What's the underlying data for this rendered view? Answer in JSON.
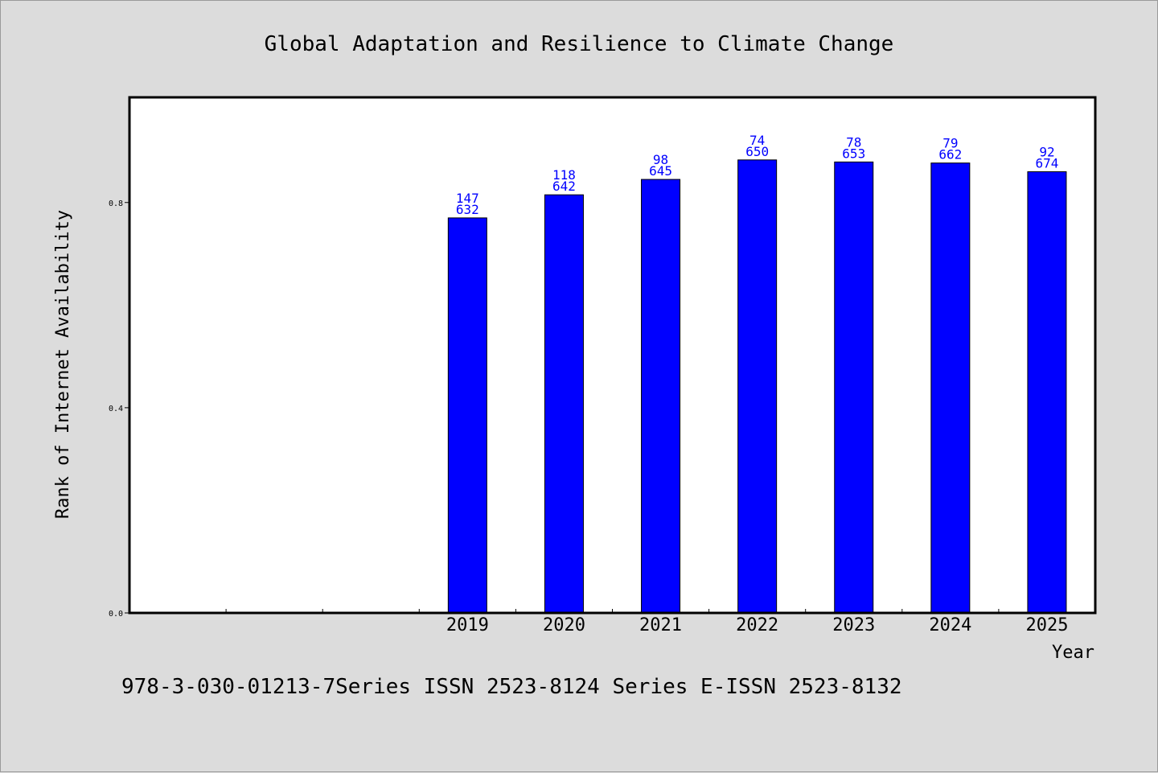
{
  "chart_data": {
    "type": "bar",
    "title": "Global Adaptation and Resilience to Climate Change",
    "xlabel": "Year",
    "ylabel": "Rank of Internet Availability",
    "categories": [
      "2019",
      "2020",
      "2021",
      "2022",
      "2023",
      "2024",
      "2025"
    ],
    "x_slots": 10,
    "first_category_slot": 3,
    "series": [
      {
        "values": [
          0.77,
          0.815,
          0.845,
          0.883,
          0.879,
          0.877,
          0.86
        ],
        "labels_top": [
          "147",
          "118",
          "98",
          "74",
          "78",
          "79",
          "92"
        ],
        "labels_bottom": [
          "632",
          "642",
          "645",
          "650",
          "653",
          "662",
          "674"
        ],
        "color": "#0000ff"
      }
    ],
    "ylim": [
      0,
      1.005
    ],
    "yticks": [
      0.0,
      0.4,
      0.8
    ],
    "ytick_labels": [
      "0.0",
      "0.4",
      "0.8"
    ],
    "grid": false,
    "legend": "none"
  },
  "footer": {
    "text": "978-3-030-01213-7Series ISSN 2523-8124 Series E-ISSN 2523-8132"
  },
  "colors": {
    "background": "#dcdcdc",
    "plot_area": "#ffffff",
    "bar": "#0000ff",
    "data_label": "#0000ff"
  }
}
